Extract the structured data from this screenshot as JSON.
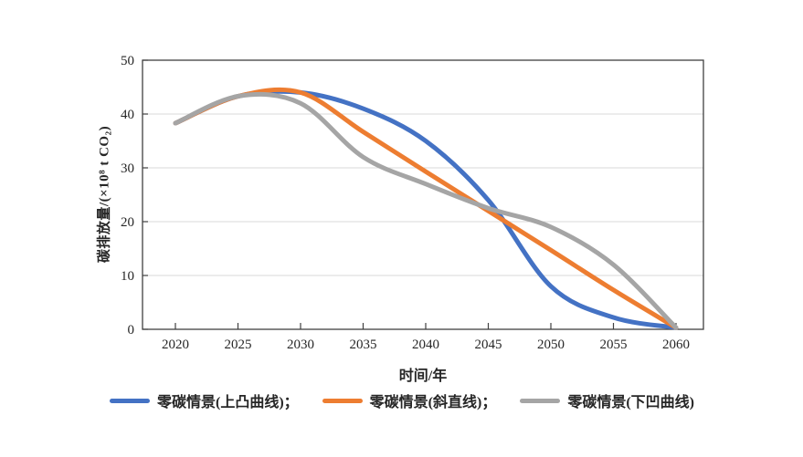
{
  "figure": {
    "background": "#ffffff"
  },
  "chart_data": {
    "type": "line",
    "title": "",
    "xlabel": "时间/年",
    "ylabel": "碳排放量/(×10⁸ t CO₂)",
    "x": [
      2020,
      2025,
      2030,
      2035,
      2040,
      2045,
      2050,
      2055,
      2060
    ],
    "ylim": [
      0,
      50
    ],
    "yticks": [
      0,
      10,
      20,
      30,
      40,
      50
    ],
    "grid": "horizontal",
    "legend_position": "bottom",
    "colors": {
      "axis": "#404040",
      "grid": "#d9d9d9",
      "text": "#262626"
    },
    "series": [
      {
        "name": "零碳情景(上凸曲线)",
        "color": "#4472C4",
        "values": [
          38.3,
          43.3,
          44,
          41,
          35,
          24,
          8,
          2.2,
          0.3
        ]
      },
      {
        "name": "零碳情景(斜直线)",
        "color": "#ED7D31",
        "values": [
          38.3,
          43.3,
          44,
          36.7,
          29.3,
          22,
          14.7,
          7.3,
          0.3
        ]
      },
      {
        "name": "零碳情景(下凹曲线)",
        "color": "#A5A5A5",
        "values": [
          38.3,
          43.3,
          42,
          32,
          27,
          22.5,
          19,
          12,
          0.3
        ]
      }
    ],
    "legend": [
      {
        "label": "零碳情景(上凸曲线)；",
        "color": "#4472C4"
      },
      {
        "label": "零碳情景(斜直线)；",
        "color": "#ED7D31"
      },
      {
        "label": "零碳情景(下凹曲线)",
        "color": "#A5A5A5"
      }
    ]
  }
}
